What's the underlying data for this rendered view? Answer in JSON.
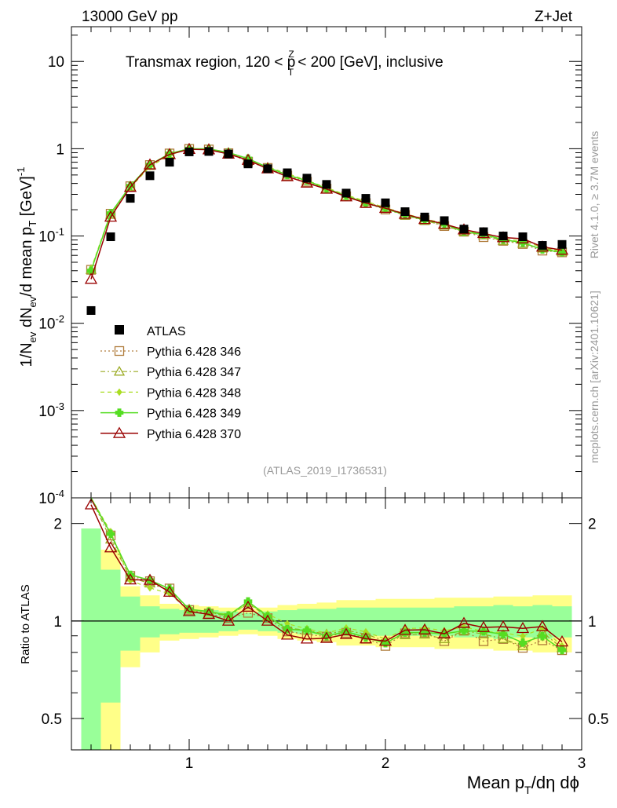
{
  "header": {
    "left": "13000 GeV pp",
    "right": "Z+Jet"
  },
  "side_labels": {
    "rivet": "Rivet 4.1.0, ≥ 3.7M events",
    "mcplots": "mcplots.cern.ch [arXiv:2401.10621]"
  },
  "colors": {
    "data": "#000000",
    "band_inner": "#99ff99",
    "band_outer": "#ffff88",
    "s346": "#b07c3c",
    "s347": "#9aaa22",
    "s348": "#aadd22",
    "s349": "#55dd22",
    "s370": "#990000"
  },
  "chart_data": {
    "type": "line",
    "title": "Transmax region, 120 < p",
    "title_sup": "Z",
    "title_sub": "T",
    "title_rest": " < 200 [GeV], inclusive",
    "watermark": "(ATLAS_2019_I1736531)",
    "xlabel": "Mean p",
    "xlabel_sub": "T",
    "xlabel_rest": "/dη dϕ",
    "ylabel": "1/N",
    "ylabel_parts": [
      "1/N",
      "ev",
      " dN",
      "ev",
      "/d mean p",
      "T",
      " [GeV]",
      "-1"
    ],
    "ratio_ylabel": "Ratio to ATLAS",
    "xlim": [
      0.4,
      3.0
    ],
    "ylim": [
      0.0001,
      25
    ],
    "ratio_ylim": [
      0.4,
      2.4
    ],
    "x_ticks": [
      "1",
      "2",
      "3"
    ],
    "y_ticks": [
      {
        "base": "10",
        "exp": "-4"
      },
      {
        "base": "10",
        "exp": "-3"
      },
      {
        "base": "10",
        "exp": "-2"
      },
      {
        "base": "10",
        "exp": "-1"
      },
      {
        "base": "1",
        "exp": ""
      },
      {
        "base": "10",
        "exp": ""
      }
    ],
    "ratio_y_ticks": [
      "0.5",
      "1",
      "2"
    ],
    "x": [
      0.5,
      0.6,
      0.7,
      0.8,
      0.9,
      1.0,
      1.1,
      1.2,
      1.3,
      1.4,
      1.5,
      1.6,
      1.7,
      1.8,
      1.9,
      2.0,
      2.1,
      2.2,
      2.3,
      2.4,
      2.5,
      2.6,
      2.7,
      2.8,
      2.9
    ],
    "data": {
      "name": "ATLAS",
      "values": [
        0.014,
        0.098,
        0.27,
        0.49,
        0.7,
        0.92,
        0.93,
        0.87,
        0.67,
        0.59,
        0.53,
        0.46,
        0.39,
        0.31,
        0.27,
        0.24,
        0.19,
        0.165,
        0.15,
        0.12,
        0.112,
        0.1,
        0.098,
        0.078,
        0.08
      ],
      "band_inner": [
        0.93,
        0.44,
        0.19,
        0.11,
        0.09,
        0.08,
        0.08,
        0.07,
        0.06,
        0.07,
        0.08,
        0.09,
        0.09,
        0.1,
        0.1,
        0.1,
        0.1,
        0.1,
        0.1,
        0.11,
        0.11,
        0.12,
        0.11,
        0.12,
        0.11
      ],
      "band_outer": [
        0.93,
        0.66,
        0.28,
        0.2,
        0.13,
        0.12,
        0.11,
        0.1,
        0.09,
        0.1,
        0.12,
        0.13,
        0.14,
        0.16,
        0.16,
        0.17,
        0.17,
        0.17,
        0.18,
        0.18,
        0.18,
        0.19,
        0.19,
        0.2,
        0.2
      ]
    },
    "series": [
      {
        "name": "Pythia 6.428 346",
        "marker": "square",
        "dash": "2,3",
        "values": [
          0.041,
          0.18,
          0.372,
          0.65,
          0.882,
          0.995,
          0.98,
          0.888,
          0.71,
          0.602,
          0.492,
          0.418,
          0.349,
          0.285,
          0.238,
          0.201,
          0.174,
          0.152,
          0.13,
          0.112,
          0.097,
          0.088,
          0.081,
          0.068,
          0.065
        ]
      },
      {
        "name": "Pythia 6.428 347",
        "marker": "triangle",
        "dash": "6,3,2,3",
        "values": [
          0.041,
          0.175,
          0.368,
          0.64,
          0.87,
          1.0,
          0.99,
          0.9,
          0.76,
          0.608,
          0.505,
          0.43,
          0.355,
          0.29,
          0.246,
          0.208,
          0.172,
          0.15,
          0.132,
          0.112,
          0.102,
          0.088,
          0.082,
          0.072,
          0.066
        ]
      },
      {
        "name": "Pythia 6.428 348",
        "marker": "diamond",
        "dash": "5,4",
        "values": [
          0.042,
          0.185,
          0.36,
          0.62,
          0.85,
          0.99,
          0.995,
          0.91,
          0.755,
          0.62,
          0.52,
          0.435,
          0.358,
          0.295,
          0.25,
          0.211,
          0.18,
          0.157,
          0.14,
          0.115,
          0.104,
          0.092,
          0.088,
          0.074,
          0.067
        ]
      },
      {
        "name": "Pythia 6.428 349",
        "marker": "cross",
        "dash": "",
        "values": [
          0.04,
          0.182,
          0.375,
          0.655,
          0.88,
          1.0,
          0.995,
          0.905,
          0.77,
          0.61,
          0.5,
          0.43,
          0.35,
          0.288,
          0.24,
          0.205,
          0.175,
          0.152,
          0.137,
          0.112,
          0.104,
          0.091,
          0.084,
          0.07,
          0.065
        ]
      },
      {
        "name": "Pythia 6.428 370",
        "marker": "open-triangle",
        "dash": "",
        "values": [
          0.032,
          0.165,
          0.362,
          0.655,
          0.86,
          0.985,
          0.975,
          0.87,
          0.74,
          0.59,
          0.48,
          0.405,
          0.345,
          0.282,
          0.238,
          0.208,
          0.178,
          0.155,
          0.137,
          0.118,
          0.107,
          0.096,
          0.093,
          0.075,
          0.069
        ]
      }
    ]
  }
}
